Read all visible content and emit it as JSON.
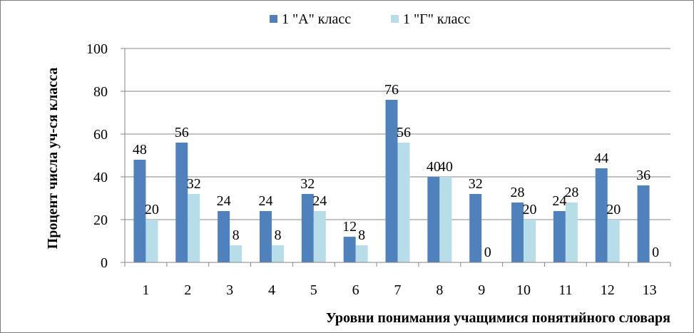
{
  "chart_data": {
    "type": "bar",
    "categories": [
      "1",
      "2",
      "3",
      "4",
      "5",
      "6",
      "7",
      "8",
      "9",
      "10",
      "11",
      "12",
      "13"
    ],
    "series": [
      {
        "name": "1 \"А\" класс",
        "values": [
          48,
          56,
          24,
          24,
          32,
          12,
          76,
          40,
          32,
          28,
          24,
          44,
          36
        ],
        "color": "#4f81bd"
      },
      {
        "name": "1 \"Г\" класс",
        "values": [
          20,
          32,
          8,
          8,
          24,
          8,
          56,
          40,
          0,
          20,
          28,
          20,
          0
        ],
        "color": "#b7dee8"
      }
    ],
    "title": "",
    "xlabel": "Уровни понимания учащимися понятийного словаря",
    "ylabel": "Процент числа уч-ся класса",
    "ylim": [
      0,
      100
    ],
    "yticks": [
      0,
      20,
      40,
      60,
      80,
      100
    ],
    "grid": true,
    "legend": "top-center"
  }
}
